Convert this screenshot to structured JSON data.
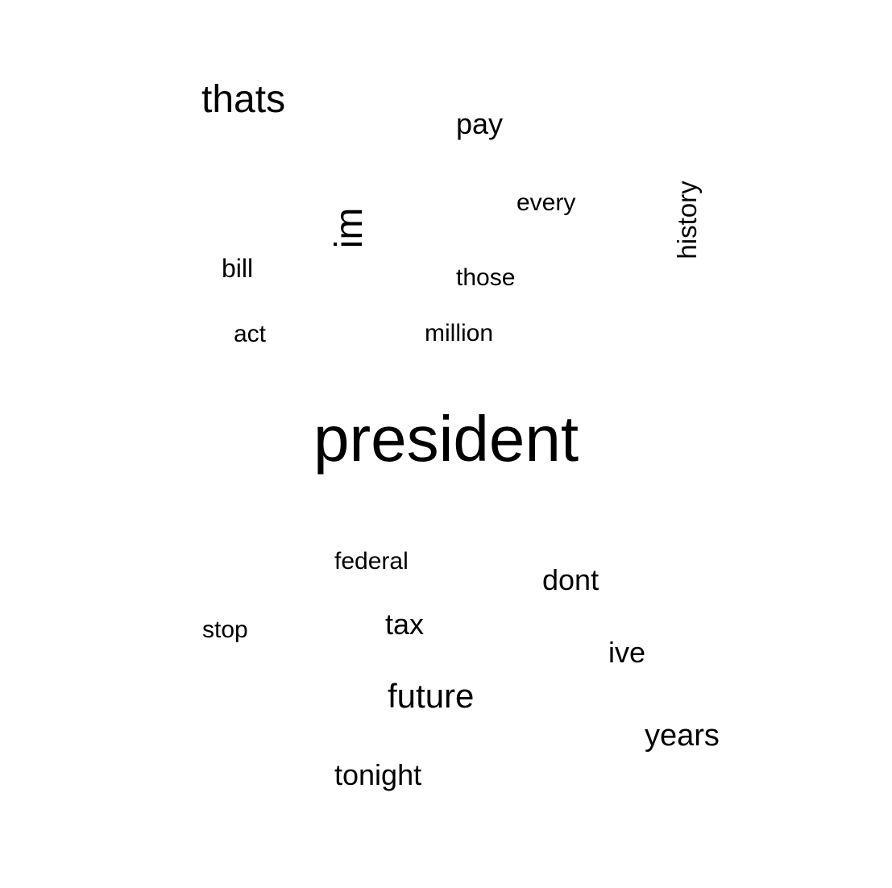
{
  "word_cloud": {
    "words": [
      {
        "text": "thats",
        "orientation": "horizontal"
      },
      {
        "text": "pay",
        "orientation": "horizontal"
      },
      {
        "text": "every",
        "orientation": "horizontal"
      },
      {
        "text": "im",
        "orientation": "vertical"
      },
      {
        "text": "history",
        "orientation": "vertical"
      },
      {
        "text": "bill",
        "orientation": "horizontal"
      },
      {
        "text": "those",
        "orientation": "horizontal"
      },
      {
        "text": "act",
        "orientation": "horizontal"
      },
      {
        "text": "million",
        "orientation": "horizontal"
      },
      {
        "text": "president",
        "orientation": "horizontal"
      },
      {
        "text": "federal",
        "orientation": "horizontal"
      },
      {
        "text": "dont",
        "orientation": "horizontal"
      },
      {
        "text": "stop",
        "orientation": "horizontal"
      },
      {
        "text": "tax",
        "orientation": "horizontal"
      },
      {
        "text": "ive",
        "orientation": "horizontal"
      },
      {
        "text": "future",
        "orientation": "horizontal"
      },
      {
        "text": "years",
        "orientation": "horizontal"
      },
      {
        "text": "tonight",
        "orientation": "horizontal"
      }
    ],
    "text_color": "#000000",
    "background_color": "#ffffff"
  }
}
